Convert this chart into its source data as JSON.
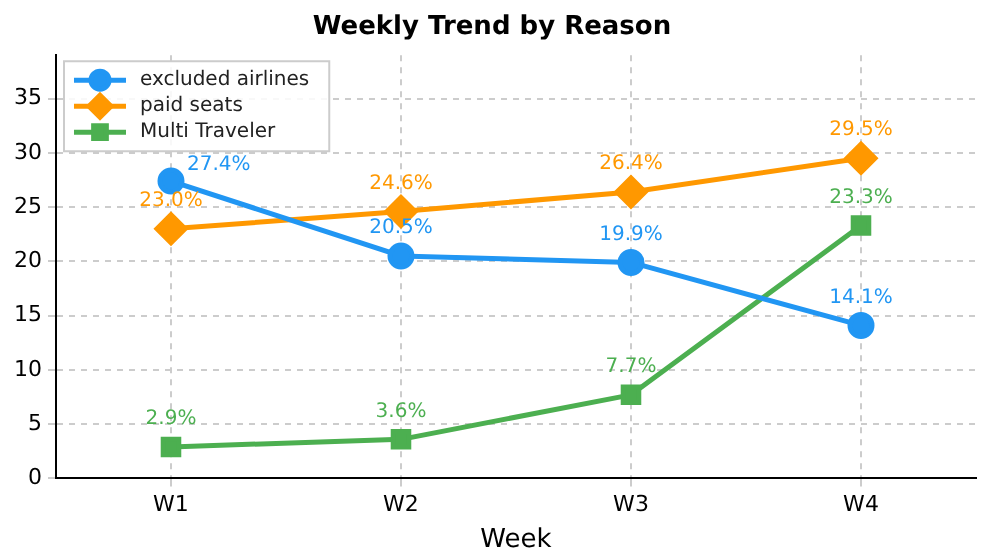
{
  "chart_data": {
    "type": "line",
    "title": "Weekly Trend by Reason",
    "xlabel": "Week",
    "categories": [
      "W1",
      "W2",
      "W3",
      "W4"
    ],
    "series": [
      {
        "name": "excluded airlines",
        "color": "#2196f3",
        "marker": "circle",
        "values": [
          27.4,
          20.5,
          19.9,
          14.1
        ],
        "value_labels": [
          "27.4%",
          "20.5%",
          "19.9%",
          "14.1%"
        ]
      },
      {
        "name": "paid seats",
        "color": "#ff9800",
        "marker": "diamond",
        "values": [
          23.0,
          24.6,
          26.4,
          29.5
        ],
        "value_labels": [
          "23.0%",
          "24.6%",
          "26.4%",
          "29.5%"
        ]
      },
      {
        "name": "Multi Traveler",
        "color": "#4caf50",
        "marker": "square",
        "values": [
          2.9,
          3.6,
          7.7,
          23.3
        ],
        "value_labels": [
          "2.9%",
          "3.6%",
          "7.7%",
          "23.3%"
        ]
      }
    ],
    "ylim": [
      0,
      39
    ],
    "yticks": [
      0,
      5,
      10,
      15,
      20,
      25,
      30,
      35
    ],
    "grid": true,
    "legend": "top left"
  }
}
